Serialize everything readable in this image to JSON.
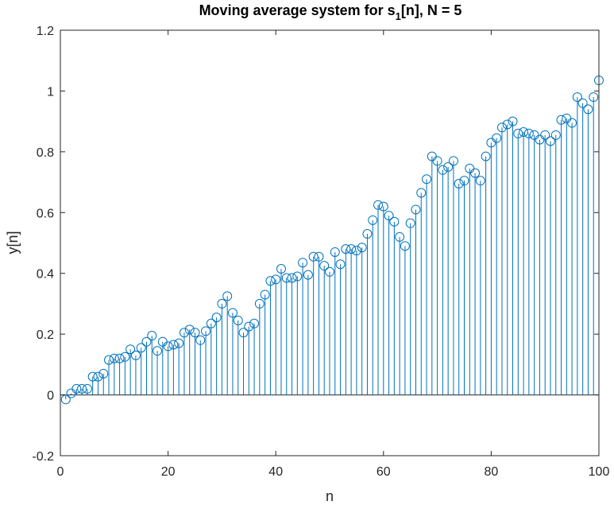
{
  "chart_data": {
    "type": "stem",
    "title_main": "Moving average system for s",
    "title_sub": "1",
    "title_rest": "[n], N = 5",
    "xlabel": "n",
    "ylabel": "y[n]",
    "xlim": [
      0,
      100
    ],
    "ylim": [
      -0.2,
      1.2
    ],
    "xticks": [
      0,
      20,
      40,
      60,
      80,
      100
    ],
    "xtick_labels": [
      "0",
      "20",
      "40",
      "60",
      "80",
      "100"
    ],
    "yticks": [
      -0.2,
      0,
      0.2,
      0.4,
      0.6,
      0.8,
      1,
      1.2
    ],
    "ytick_labels": [
      "-0.2",
      "0",
      "0.2",
      "0.4",
      "0.6",
      "0.8",
      "1",
      "1.2"
    ],
    "grid": false,
    "box": true,
    "color": "#0072BD",
    "x": [
      1,
      2,
      3,
      4,
      5,
      6,
      7,
      8,
      9,
      10,
      11,
      12,
      13,
      14,
      15,
      16,
      17,
      18,
      19,
      20,
      21,
      22,
      23,
      24,
      25,
      26,
      27,
      28,
      29,
      30,
      31,
      32,
      33,
      34,
      35,
      36,
      37,
      38,
      39,
      40,
      41,
      42,
      43,
      44,
      45,
      46,
      47,
      48,
      49,
      50,
      51,
      52,
      53,
      54,
      55,
      56,
      57,
      58,
      59,
      60,
      61,
      62,
      63,
      64,
      65,
      66,
      67,
      68,
      69,
      70,
      71,
      72,
      73,
      74,
      75,
      76,
      77,
      78,
      79,
      80,
      81,
      82,
      83,
      84,
      85,
      86,
      87,
      88,
      89,
      90,
      91,
      92,
      93,
      94,
      95,
      96,
      97,
      98,
      99,
      100
    ],
    "values": [
      -0.015,
      0.005,
      0.02,
      0.02,
      0.02,
      0.06,
      0.06,
      0.07,
      0.115,
      0.12,
      0.12,
      0.125,
      0.15,
      0.13,
      0.155,
      0.175,
      0.195,
      0.145,
      0.175,
      0.16,
      0.165,
      0.17,
      0.205,
      0.215,
      0.205,
      0.18,
      0.21,
      0.235,
      0.255,
      0.3,
      0.325,
      0.27,
      0.245,
      0.205,
      0.225,
      0.235,
      0.3,
      0.33,
      0.375,
      0.38,
      0.415,
      0.385,
      0.385,
      0.39,
      0.435,
      0.395,
      0.455,
      0.455,
      0.425,
      0.405,
      0.47,
      0.43,
      0.48,
      0.48,
      0.475,
      0.485,
      0.53,
      0.575,
      0.625,
      0.62,
      0.59,
      0.57,
      0.52,
      0.49,
      0.565,
      0.61,
      0.665,
      0.71,
      0.785,
      0.77,
      0.74,
      0.75,
      0.77,
      0.695,
      0.705,
      0.745,
      0.73,
      0.705,
      0.785,
      0.83,
      0.845,
      0.88,
      0.89,
      0.9,
      0.86,
      0.865,
      0.86,
      0.855,
      0.84,
      0.855,
      0.835,
      0.855,
      0.905,
      0.91,
      0.895,
      0.98,
      0.96,
      0.94,
      0.98,
      1.035
    ]
  }
}
